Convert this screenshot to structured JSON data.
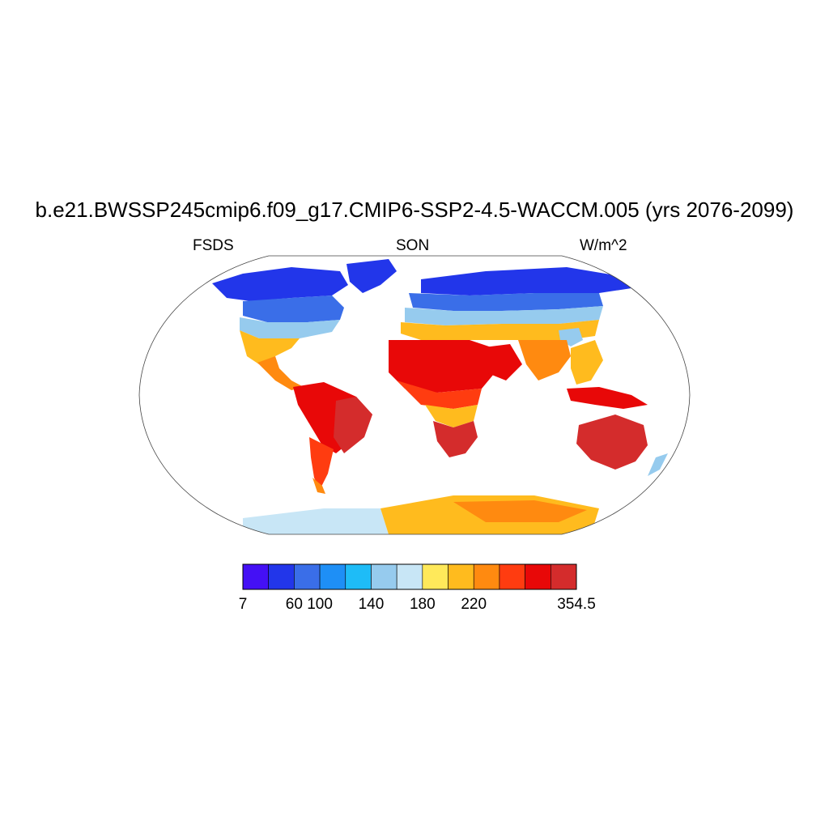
{
  "title": "b.e21.BWSSP245cmip6.f09_g17.CMIP6-SSP2-4.5-WACCM.005 (yrs 2076-2099)",
  "subtitles": {
    "left": "FSDS",
    "center": "SON",
    "right": "W/m^2"
  },
  "colorbar": {
    "colors": [
      "#4410f5",
      "#2236ea",
      "#3a6ee8",
      "#1e8ff6",
      "#1ebcf7",
      "#96cbee",
      "#c8e6f6",
      "#ffe95a",
      "#ffbb1e",
      "#ff8a10",
      "#ff3c10",
      "#e80808",
      "#d42c2c"
    ],
    "tick_labels": [
      {
        "label": "7",
        "index": 0
      },
      {
        "label": "60",
        "index": 2
      },
      {
        "label": "100",
        "index": 3
      },
      {
        "label": "140",
        "index": 5
      },
      {
        "label": "180",
        "index": 7
      },
      {
        "label": "220",
        "index": 9
      },
      {
        "label": "354.5",
        "index": 13
      }
    ]
  },
  "map_regions": {
    "north_polar": "#2236ea",
    "north_subpolar": "#3a6ee8",
    "mid_lat_north": "#96cbee",
    "subtropics_north": "#ffbb1e",
    "sahara": "#e80808",
    "tropics": "#ff3c10",
    "south_tropics": "#d42c2c",
    "south_mid": "#ff8a10",
    "antarctica_west": "#c8e6f6",
    "antarctica_east": "#ffbb1e",
    "antarctica_interior": "#ff8a10"
  }
}
